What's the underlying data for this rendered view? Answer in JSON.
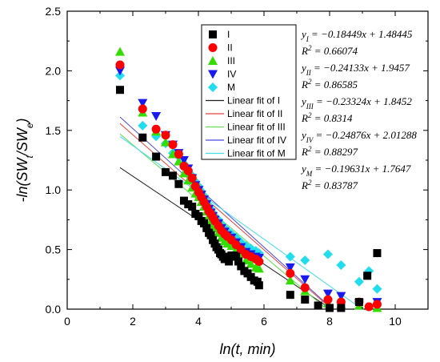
{
  "chart_data": {
    "type": "scatter",
    "xlabel": "ln(t, min)",
    "ylabel": "-ln(SWt/SWe)",
    "xlim": [
      0,
      11
    ],
    "ylim": [
      0,
      2.5
    ],
    "x_ticks": [
      "0",
      "2",
      "4",
      "6",
      "8",
      "10"
    ],
    "y_ticks": [
      "0.0",
      "0.5",
      "1.0",
      "1.5",
      "2.0",
      "2.5"
    ],
    "legend_placement": "top-center",
    "series": [
      {
        "name": "I",
        "marker": "square",
        "color": "#000000",
        "points": [
          [
            1.61,
            1.84
          ],
          [
            2.3,
            1.44
          ],
          [
            2.71,
            1.28
          ],
          [
            3.0,
            1.15
          ],
          [
            3.22,
            1.12
          ],
          [
            3.4,
            1.05
          ],
          [
            3.56,
            0.91
          ],
          [
            3.69,
            0.88
          ],
          [
            3.81,
            0.86
          ],
          [
            3.91,
            0.8
          ],
          [
            4.01,
            0.78
          ],
          [
            4.09,
            0.74
          ],
          [
            4.17,
            0.72
          ],
          [
            4.25,
            0.68
          ],
          [
            4.32,
            0.64
          ],
          [
            4.38,
            0.62
          ],
          [
            4.44,
            0.58
          ],
          [
            4.5,
            0.55
          ],
          [
            4.55,
            0.52
          ],
          [
            4.61,
            0.5
          ],
          [
            4.66,
            0.47
          ],
          [
            4.7,
            0.46
          ],
          [
            4.75,
            0.44
          ],
          [
            4.8,
            0.42
          ],
          [
            4.84,
            0.44
          ],
          [
            4.88,
            0.43
          ],
          [
            4.93,
            0.4
          ],
          [
            5.01,
            0.45
          ],
          [
            5.08,
            0.45
          ],
          [
            5.15,
            0.44
          ],
          [
            5.22,
            0.4
          ],
          [
            5.3,
            0.36
          ],
          [
            5.4,
            0.32
          ],
          [
            5.5,
            0.3
          ],
          [
            5.6,
            0.27
          ],
          [
            5.7,
            0.24
          ],
          [
            5.8,
            0.23
          ],
          [
            5.85,
            0.2
          ],
          [
            6.8,
            0.12
          ],
          [
            7.25,
            0.08
          ],
          [
            7.65,
            0.03
          ],
          [
            8.0,
            0.01
          ],
          [
            8.35,
            0.01
          ],
          [
            8.9,
            0.06
          ],
          [
            9.15,
            0.28
          ],
          [
            9.45,
            0.47
          ]
        ],
        "fit_label": "Linear fit of I",
        "fit_color": "#202020",
        "equation": "y_I = -0.18449x + 1.48445",
        "r2": "R^2 = 0.66074",
        "slope": -0.18449,
        "intercept": 1.48445
      },
      {
        "name": "II",
        "marker": "circle",
        "color": "#ff0000",
        "points": [
          [
            1.61,
            2.05
          ],
          [
            2.3,
            1.68
          ],
          [
            2.71,
            1.51
          ],
          [
            3.0,
            1.46
          ],
          [
            3.22,
            1.38
          ],
          [
            3.4,
            1.3
          ],
          [
            3.56,
            1.2
          ],
          [
            3.69,
            1.16
          ],
          [
            3.81,
            1.1
          ],
          [
            3.91,
            1.03
          ],
          [
            4.01,
            0.98
          ],
          [
            4.09,
            0.94
          ],
          [
            4.17,
            0.9
          ],
          [
            4.25,
            0.86
          ],
          [
            4.32,
            0.82
          ],
          [
            4.38,
            0.8
          ],
          [
            4.44,
            0.77
          ],
          [
            4.5,
            0.74
          ],
          [
            4.61,
            0.7
          ],
          [
            4.7,
            0.66
          ],
          [
            4.8,
            0.63
          ],
          [
            4.88,
            0.61
          ],
          [
            5.01,
            0.58
          ],
          [
            5.15,
            0.54
          ],
          [
            5.3,
            0.5
          ],
          [
            5.45,
            0.46
          ],
          [
            5.6,
            0.44
          ],
          [
            5.75,
            0.42
          ],
          [
            5.85,
            0.4
          ],
          [
            6.8,
            0.3
          ],
          [
            7.25,
            0.18
          ],
          [
            7.95,
            0.08
          ],
          [
            8.35,
            0.06
          ],
          [
            8.9,
            0.06
          ],
          [
            9.2,
            0.02
          ],
          [
            9.45,
            0.04
          ]
        ],
        "fit_label": "Linear fit of II",
        "fit_color": "#e8413a",
        "equation": "y_II = -0.24133x + 1.9457",
        "r2": "R^2 = 0.86585",
        "slope": -0.24133,
        "intercept": 1.9457
      },
      {
        "name": "III",
        "marker": "triangle-up",
        "color": "#33dd00",
        "points": [
          [
            1.61,
            2.16
          ],
          [
            2.3,
            1.65
          ],
          [
            2.71,
            1.49
          ],
          [
            3.0,
            1.4
          ],
          [
            3.22,
            1.3
          ],
          [
            3.4,
            1.24
          ],
          [
            3.56,
            1.14
          ],
          [
            3.69,
            1.08
          ],
          [
            3.81,
            1.02
          ],
          [
            3.91,
            0.97
          ],
          [
            4.01,
            0.94
          ],
          [
            4.09,
            0.9
          ],
          [
            4.17,
            0.86
          ],
          [
            4.25,
            0.82
          ],
          [
            4.32,
            0.78
          ],
          [
            4.38,
            0.74
          ],
          [
            4.44,
            0.71
          ],
          [
            4.5,
            0.68
          ],
          [
            4.61,
            0.64
          ],
          [
            4.7,
            0.6
          ],
          [
            4.8,
            0.57
          ],
          [
            4.88,
            0.55
          ],
          [
            5.01,
            0.53
          ],
          [
            5.15,
            0.5
          ],
          [
            5.3,
            0.46
          ],
          [
            5.45,
            0.41
          ],
          [
            5.6,
            0.38
          ],
          [
            5.75,
            0.35
          ],
          [
            5.85,
            0.34
          ],
          [
            6.8,
            0.24
          ],
          [
            7.25,
            0.15
          ],
          [
            7.95,
            0.05
          ],
          [
            8.35,
            0.04
          ],
          [
            8.9,
            0.03
          ],
          [
            9.45,
            0.01
          ]
        ],
        "fit_label": "Linear fit of III",
        "fit_color": "#66dd55",
        "equation": "y_III = -0.23324x + 1.8452",
        "r2": "R^2 = 0.8314",
        "slope": -0.23324,
        "intercept": 1.8452
      },
      {
        "name": "IV",
        "marker": "triangle-down",
        "color": "#1a1aee",
        "points": [
          [
            1.61,
            2.0
          ],
          [
            2.3,
            1.73
          ],
          [
            2.71,
            1.62
          ],
          [
            3.0,
            1.46
          ],
          [
            3.22,
            1.38
          ],
          [
            3.4,
            1.31
          ],
          [
            3.56,
            1.25
          ],
          [
            3.69,
            1.18
          ],
          [
            3.81,
            1.1
          ],
          [
            3.91,
            1.04
          ],
          [
            4.01,
            1.0
          ],
          [
            4.09,
            0.96
          ],
          [
            4.17,
            0.92
          ],
          [
            4.25,
            0.88
          ],
          [
            4.32,
            0.84
          ],
          [
            4.38,
            0.81
          ],
          [
            4.44,
            0.78
          ],
          [
            4.5,
            0.75
          ],
          [
            4.61,
            0.72
          ],
          [
            4.7,
            0.68
          ],
          [
            4.8,
            0.65
          ],
          [
            4.88,
            0.62
          ],
          [
            5.01,
            0.6
          ],
          [
            5.15,
            0.56
          ],
          [
            5.3,
            0.52
          ],
          [
            5.45,
            0.48
          ],
          [
            5.6,
            0.46
          ],
          [
            5.75,
            0.44
          ],
          [
            5.85,
            0.43
          ],
          [
            6.8,
            0.35
          ],
          [
            7.25,
            0.25
          ],
          [
            7.95,
            0.13
          ],
          [
            8.35,
            0.11
          ],
          [
            8.9,
            0.05
          ],
          [
            9.45,
            0.06
          ]
        ],
        "fit_label": "Linear fit of IV",
        "fit_color": "#4a4ae0",
        "equation": "y_IV = -0.24876x + 2.01288",
        "r2": "R^2 = 0.88297",
        "slope": -0.24876,
        "intercept": 2.01288
      },
      {
        "name": "M",
        "marker": "diamond",
        "color": "#22ddee",
        "points": [
          [
            1.61,
            1.96
          ],
          [
            2.3,
            1.54
          ],
          [
            2.71,
            1.45
          ],
          [
            3.0,
            1.39
          ],
          [
            3.22,
            1.31
          ],
          [
            3.4,
            1.28
          ],
          [
            3.56,
            1.22
          ],
          [
            3.69,
            1.17
          ],
          [
            3.81,
            1.12
          ],
          [
            3.91,
            1.07
          ],
          [
            4.01,
            1.03
          ],
          [
            4.09,
            0.99
          ],
          [
            4.17,
            0.95
          ],
          [
            4.25,
            0.91
          ],
          [
            4.32,
            0.87
          ],
          [
            4.38,
            0.84
          ],
          [
            4.44,
            0.81
          ],
          [
            4.5,
            0.78
          ],
          [
            4.61,
            0.75
          ],
          [
            4.7,
            0.71
          ],
          [
            4.8,
            0.68
          ],
          [
            4.88,
            0.66
          ],
          [
            5.01,
            0.63
          ],
          [
            5.15,
            0.6
          ],
          [
            5.3,
            0.56
          ],
          [
            5.45,
            0.53
          ],
          [
            5.6,
            0.51
          ],
          [
            5.75,
            0.49
          ],
          [
            5.85,
            0.47
          ],
          [
            6.8,
            0.44
          ],
          [
            7.25,
            0.41
          ],
          [
            7.95,
            0.46
          ],
          [
            8.35,
            0.37
          ],
          [
            8.9,
            0.23
          ],
          [
            9.2,
            0.32
          ],
          [
            9.45,
            0.17
          ]
        ],
        "fit_label": "Linear fit of M",
        "fit_color": "#44ddee",
        "equation": "y_M = -0.19631x + 1.7647",
        "r2": "R^2 = 0.83787",
        "slope": -0.19631,
        "intercept": 1.7647
      }
    ]
  }
}
